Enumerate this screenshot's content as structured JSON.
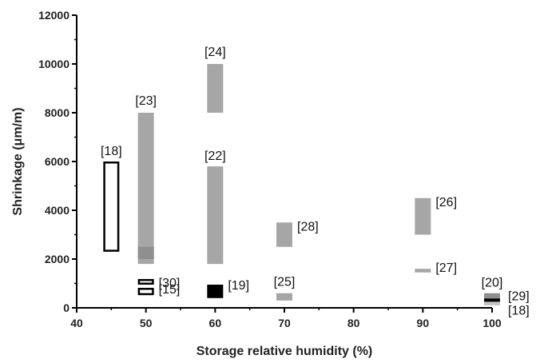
{
  "chart_data": {
    "type": "range-bar",
    "xlabel": "Storage relative humidity (%)",
    "ylabel": "Shrinkage (μm/m)",
    "xlim": [
      40,
      100
    ],
    "ylim": [
      0,
      12000
    ],
    "xticks": [
      40,
      50,
      60,
      70,
      80,
      90,
      100
    ],
    "yticks": [
      0,
      2000,
      4000,
      6000,
      8000,
      10000,
      12000
    ],
    "grid": false,
    "legend": "none",
    "colors": {
      "gray": "#a6a6a6",
      "dark_gray": "#8f8f8f",
      "light_gray": "#c4c4c4",
      "black": "#000000",
      "outline": "#000000"
    },
    "bars": [
      {
        "ref": "[18]",
        "rh": 45,
        "low": 2300,
        "high": 6000,
        "style": "outline"
      },
      {
        "ref": "[23]",
        "rh": 50,
        "low": 1800,
        "high": 8000,
        "style": "gray"
      },
      {
        "ref": "",
        "rh": 50,
        "low": 2000,
        "high": 2500,
        "style": "dark_gray"
      },
      {
        "ref": "[30]",
        "rh": 50,
        "low": 950,
        "high": 1180,
        "style": "outline"
      },
      {
        "ref": "[15]",
        "rh": 50,
        "low": 520,
        "high": 820,
        "style": "outline"
      },
      {
        "ref": "[24]",
        "rh": 60,
        "low": 8000,
        "high": 10000,
        "style": "gray"
      },
      {
        "ref": "[22]",
        "rh": 60,
        "low": 1800,
        "high": 5800,
        "style": "gray"
      },
      {
        "ref": "[19]",
        "rh": 60,
        "low": 400,
        "high": 950,
        "style": "black"
      },
      {
        "ref": "[28]",
        "rh": 70,
        "low": 2500,
        "high": 3500,
        "style": "gray"
      },
      {
        "ref": "[25]",
        "rh": 70,
        "low": 300,
        "high": 600,
        "style": "gray"
      },
      {
        "ref": "[26]",
        "rh": 90,
        "low": 3000,
        "high": 4500,
        "style": "gray"
      },
      {
        "ref": "[27]",
        "rh": 90,
        "low": 1450,
        "high": 1600,
        "style": "gray"
      },
      {
        "ref": "[20]",
        "rh": 100,
        "low": 350,
        "high": 600,
        "style": "dark_gray"
      },
      {
        "ref": "[29]",
        "rh": 100,
        "low": 230,
        "high": 380,
        "style": "black"
      },
      {
        "ref": "[18]",
        "rh": 100,
        "low": 100,
        "high": 250,
        "style": "light_gray"
      }
    ]
  }
}
